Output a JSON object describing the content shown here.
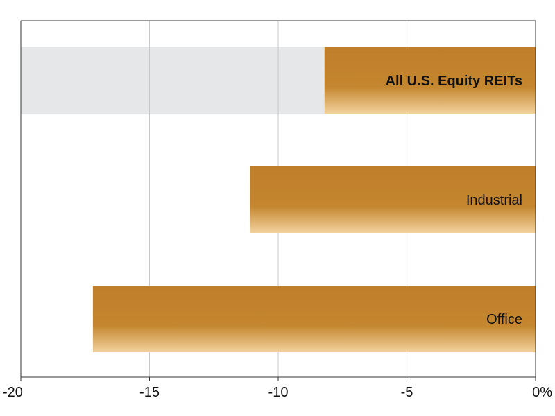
{
  "chart_data": {
    "type": "bar",
    "orientation": "horizontal",
    "categories": [
      "All U.S. Equity REITs",
      "Industrial",
      "Office"
    ],
    "values": [
      -8.2,
      -11.1,
      -17.2
    ],
    "highlight_category": "All U.S. Equity REITs",
    "xlim": [
      -20,
      0
    ],
    "xticks": [
      -20,
      -15,
      -10,
      -5,
      0
    ],
    "xtick_labels": [
      "-20",
      "-15",
      "-10",
      "-5",
      "0%"
    ],
    "grid": "vertical",
    "bar_gradient": [
      "#c07e2a",
      "#c4862f",
      "#f3d29e"
    ],
    "highlight_background": "#e6e7e8",
    "axis_color": "#333333",
    "grid_color": "#c8c8c8"
  }
}
